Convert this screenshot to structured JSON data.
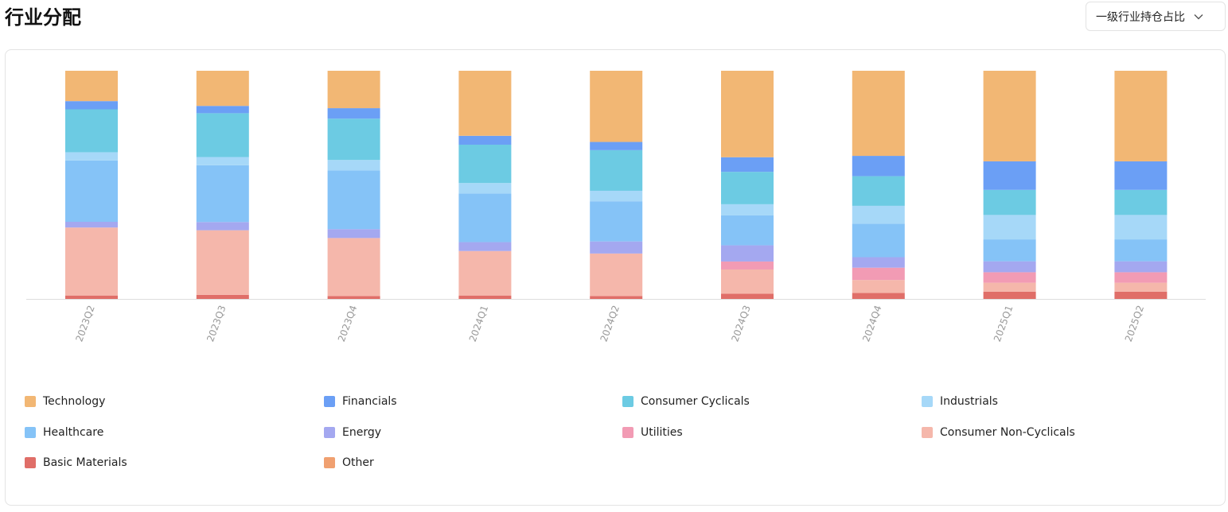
{
  "header": {
    "title": "行业分配",
    "dropdown_label": "一级行业持仓占比",
    "dropdown_icon": "chevron-down-icon"
  },
  "chart_data": {
    "type": "bar",
    "stacked": true,
    "title": "",
    "xlabel": "",
    "ylabel": "",
    "ylim": [
      0,
      100
    ],
    "grid": false,
    "legend_position": "bottom",
    "categories": [
      "2023Q2",
      "2023Q3",
      "2023Q4",
      "2024Q1",
      "2024Q2",
      "2024Q3",
      "2024Q4",
      "2025Q1",
      "2025Q2"
    ],
    "series": [
      {
        "name": "Basic Materials",
        "color": "#e06e68",
        "values": [
          1.5,
          1.8,
          1.3,
          1.5,
          1.3,
          2.3,
          2.6,
          3.2,
          3.2
        ]
      },
      {
        "name": "Other",
        "color": "#f0a070",
        "values": [
          0,
          0,
          0,
          0,
          0,
          0,
          0,
          0,
          0
        ]
      },
      {
        "name": "Consumer Non-Cyclicals",
        "color": "#f5b7ab",
        "values": [
          29.8,
          28.3,
          25.4,
          19.5,
          18.6,
          10.6,
          5.7,
          3.9,
          3.9
        ]
      },
      {
        "name": "Utilities",
        "color": "#f29bb4",
        "values": [
          0,
          0,
          0,
          0,
          0,
          3.5,
          5.4,
          4.6,
          4.6
        ]
      },
      {
        "name": "Energy",
        "color": "#a4a8f0",
        "values": [
          2.5,
          3.6,
          3.9,
          3.9,
          5.3,
          7.1,
          4.6,
          4.8,
          4.8
        ]
      },
      {
        "name": "Healthcare",
        "color": "#85c3f7",
        "values": [
          26.9,
          24.9,
          25.7,
          21.3,
          17.6,
          13.1,
          14.7,
          9.6,
          9.6
        ]
      },
      {
        "name": "Industrials",
        "color": "#a6d8f8",
        "values": [
          3.6,
          3.6,
          4.6,
          4.6,
          4.6,
          4.9,
          7.8,
          10.7,
          10.7
        ]
      },
      {
        "name": "Consumer Cyclicals",
        "color": "#6ccbe3",
        "values": [
          18.8,
          19.2,
          18.1,
          16.8,
          17.8,
          14.2,
          13.0,
          11.0,
          11.0
        ]
      },
      {
        "name": "Financials",
        "color": "#6b9ff5",
        "values": [
          3.6,
          3.2,
          4.6,
          3.9,
          3.6,
          6.4,
          8.9,
          12.5,
          12.5
        ]
      },
      {
        "name": "Technology",
        "color": "#f2b774",
        "values": [
          13.3,
          15.4,
          16.4,
          28.5,
          31.2,
          37.9,
          37.3,
          39.7,
          39.7
        ]
      }
    ],
    "legend_order": [
      "Technology",
      "Financials",
      "Consumer Cyclicals",
      "Industrials",
      "Healthcare",
      "Energy",
      "Utilities",
      "Consumer Non-Cyclicals",
      "Basic Materials",
      "Other"
    ]
  }
}
